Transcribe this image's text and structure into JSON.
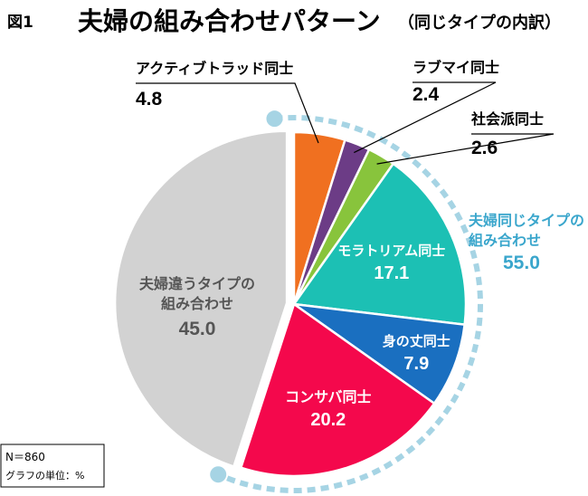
{
  "figure": {
    "label": "図1",
    "title": "夫婦の組み合わせパターン",
    "subtitle": "（同じタイプの内訳）"
  },
  "note": {
    "n": "N＝860",
    "unit": "グラフの単位：%"
  },
  "bracket": {
    "label_line1": "夫婦同じタイプの",
    "label_line2": "組み合わせ",
    "value": "55.0",
    "color": "#a6d4e4",
    "text_color": "#3aa6cc"
  },
  "chart_data": {
    "type": "pie",
    "unit": "%",
    "slices": [
      {
        "name": "アクティブトラッド同士",
        "value": 4.8,
        "color": "#f07020"
      },
      {
        "name": "ラブマイ同士",
        "value": 2.4,
        "color": "#6c3c86"
      },
      {
        "name": "社会派同士",
        "value": 2.6,
        "color": "#88c43c"
      },
      {
        "name": "モラトリアム同士",
        "value": 17.1,
        "color": "#1cc0b4"
      },
      {
        "name": "身の丈同士",
        "value": 7.9,
        "color": "#1a6fc0"
      },
      {
        "name": "コンサバ同士",
        "value": 20.2,
        "color": "#f4084c"
      },
      {
        "name": "夫婦違うタイプの組み合わせ",
        "value": 45.0,
        "color": "#d2d2d2"
      }
    ],
    "gray_label_line1": "夫婦違うタイプの",
    "gray_label_line2": "組み合わせ"
  }
}
